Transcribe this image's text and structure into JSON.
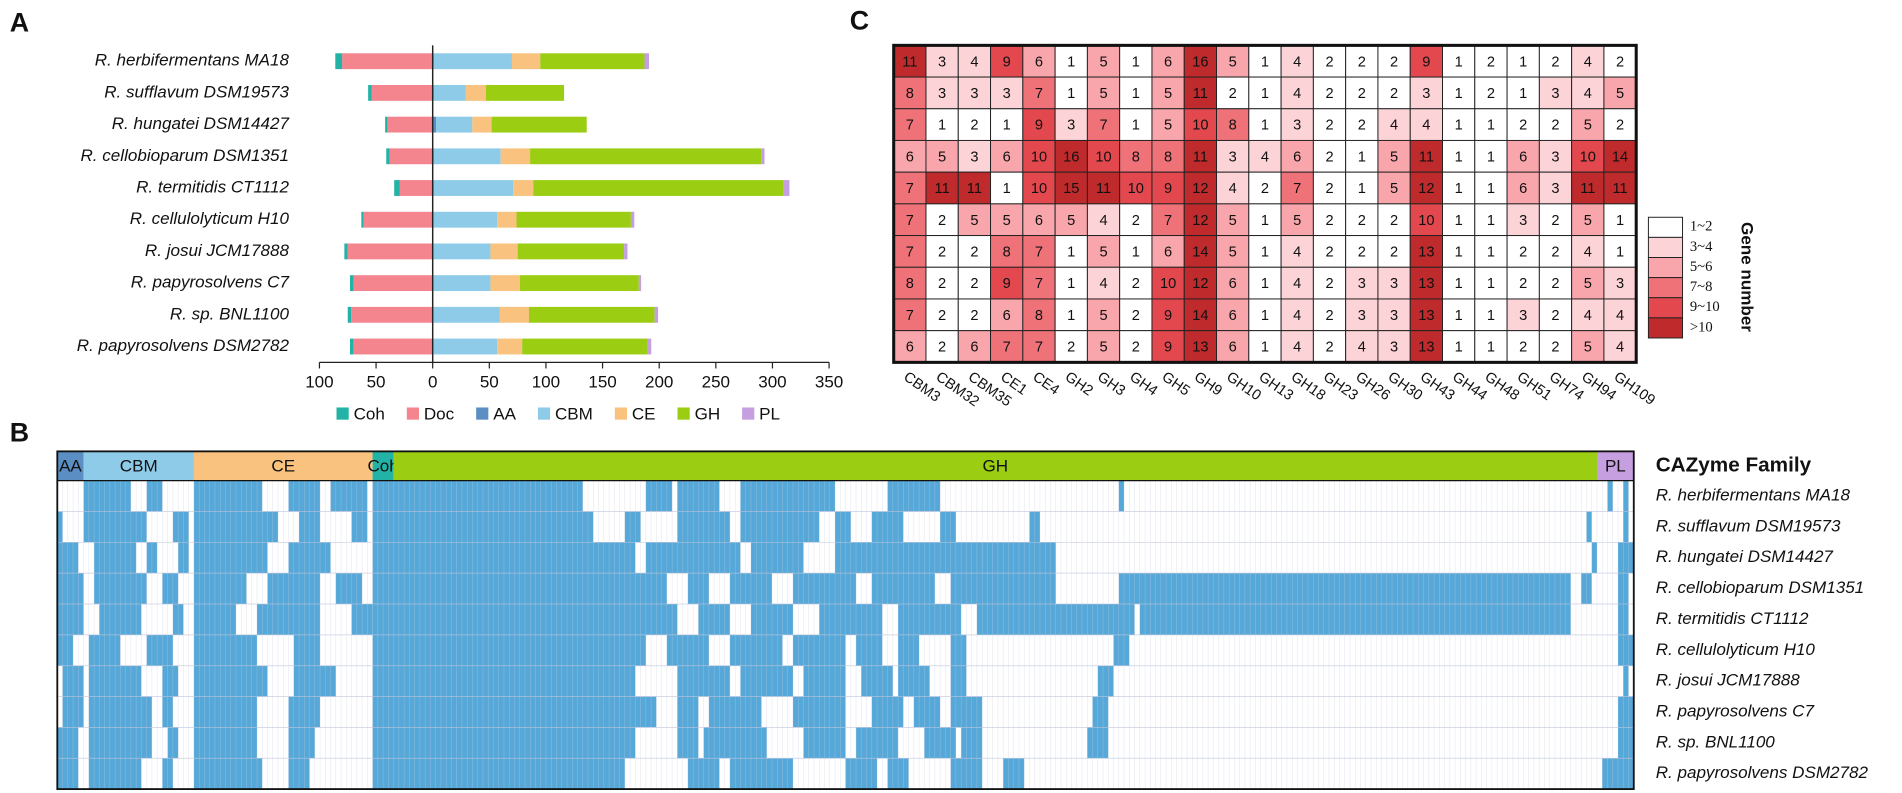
{
  "chart_data": [
    {
      "panel": "A",
      "type": "bar",
      "orientation": "horizontal",
      "stacked": true,
      "categories": [
        "R. herbifermentans MA18",
        "R. sufflavum DSM19573",
        "R. hungatei DSM14427",
        "R. cellobioparum DSM1351",
        "R. termitidis CT1112",
        "R. cellulolyticum H10",
        "R. josui JCM17888",
        "R. papyrosolvens C7",
        "R. sp. BNL1100",
        "R. papyrosolvens DSM2782"
      ],
      "series": [
        {
          "name": "Coh",
          "color": "#22b3a6",
          "values": [
            -6,
            -3,
            -2,
            -3,
            -5,
            -2,
            -3,
            -3,
            -3,
            -3
          ]
        },
        {
          "name": "Doc",
          "color": "#f4858e",
          "values": [
            -80,
            -54,
            -40,
            -38,
            -29,
            -61,
            -75,
            -70,
            -72,
            -70
          ]
        },
        {
          "name": "AA",
          "color": "#5b8fc4",
          "values": [
            1,
            1,
            3,
            1,
            1,
            0,
            0,
            0,
            0,
            0
          ]
        },
        {
          "name": "CBM",
          "color": "#8ecbe9",
          "values": [
            69,
            28,
            32,
            59,
            70,
            57,
            51,
            51,
            59,
            57
          ]
        },
        {
          "name": "CE",
          "color": "#f9c27e",
          "values": [
            25,
            18,
            17,
            26,
            18,
            17,
            24,
            26,
            26,
            22
          ]
        },
        {
          "name": "GH",
          "color": "#9bcd13",
          "values": [
            92,
            69,
            84,
            204,
            221,
            101,
            94,
            105,
            111,
            111
          ]
        },
        {
          "name": "PL",
          "color": "#c59fe0",
          "values": [
            4,
            0,
            0,
            3,
            5,
            3,
            3,
            2,
            3,
            3
          ]
        }
      ],
      "xlim": [
        -100,
        350
      ],
      "xticks": [
        {
          "value": -100,
          "label": "100"
        },
        {
          "value": -50,
          "label": "50"
        },
        0,
        50,
        100,
        150,
        200,
        250,
        300,
        350
      ],
      "legend": "bottom"
    },
    {
      "panel": "B",
      "type": "presence-matrix",
      "color": "#55a8d8",
      "legend_title": "CAZyme Family",
      "groups": [
        {
          "name": "AA",
          "count": 5,
          "color": "#5b8fc4"
        },
        {
          "name": "CBM",
          "count": 21,
          "color": "#8ecbe9"
        },
        {
          "name": "CE",
          "count": 34,
          "color": "#f9c27e"
        },
        {
          "name": "Coh",
          "count": 4,
          "color": "#22b3a6"
        },
        {
          "name": "GH",
          "count": 229,
          "color": "#9bcd13"
        },
        {
          "name": "PL",
          "count": 7,
          "color": "#c59fe0"
        }
      ],
      "rows": [
        [
          [
            5,
            9
          ],
          [
            17,
            3
          ],
          [
            26,
            13
          ],
          [
            44,
            6
          ],
          [
            52,
            7
          ],
          [
            60,
            40
          ],
          [
            112,
            5
          ],
          [
            118,
            8
          ],
          [
            130,
            18
          ],
          [
            158,
            10
          ],
          [
            202,
            1
          ],
          [
            295,
            1
          ],
          [
            298,
            1
          ]
        ],
        [
          [
            0,
            1
          ],
          [
            5,
            12
          ],
          [
            22,
            3
          ],
          [
            26,
            16
          ],
          [
            46,
            4
          ],
          [
            56,
            3
          ],
          [
            60,
            42
          ],
          [
            108,
            3
          ],
          [
            118,
            10
          ],
          [
            130,
            15
          ],
          [
            148,
            3
          ],
          [
            155,
            6
          ],
          [
            168,
            3
          ],
          [
            185,
            2
          ],
          [
            291,
            1
          ],
          [
            298,
            1
          ]
        ],
        [
          [
            0,
            4
          ],
          [
            7,
            8
          ],
          [
            17,
            2
          ],
          [
            23,
            2
          ],
          [
            26,
            14
          ],
          [
            44,
            8
          ],
          [
            60,
            50
          ],
          [
            112,
            18
          ],
          [
            132,
            10
          ],
          [
            148,
            28
          ],
          [
            176,
            14
          ],
          [
            292,
            1
          ],
          [
            297,
            3
          ]
        ],
        [
          [
            0,
            5
          ],
          [
            7,
            10
          ],
          [
            20,
            3
          ],
          [
            26,
            10
          ],
          [
            40,
            10
          ],
          [
            53,
            5
          ],
          [
            60,
            56
          ],
          [
            120,
            4
          ],
          [
            128,
            8
          ],
          [
            140,
            12
          ],
          [
            155,
            12
          ],
          [
            170,
            20
          ],
          [
            202,
            86
          ],
          [
            290,
            2
          ],
          [
            297,
            2
          ]
        ],
        [
          [
            0,
            5
          ],
          [
            8,
            8
          ],
          [
            22,
            2
          ],
          [
            26,
            8
          ],
          [
            38,
            12
          ],
          [
            56,
            4
          ],
          [
            60,
            58
          ],
          [
            122,
            6
          ],
          [
            132,
            8
          ],
          [
            145,
            12
          ],
          [
            160,
            12
          ],
          [
            175,
            30
          ],
          [
            206,
            82
          ],
          [
            297,
            2
          ]
        ],
        [
          [
            0,
            3
          ],
          [
            6,
            6
          ],
          [
            17,
            5
          ],
          [
            26,
            12
          ],
          [
            45,
            5
          ],
          [
            60,
            52
          ],
          [
            116,
            8
          ],
          [
            128,
            10
          ],
          [
            140,
            10
          ],
          [
            152,
            5
          ],
          [
            160,
            4
          ],
          [
            170,
            3
          ],
          [
            201,
            3
          ],
          [
            297,
            3
          ]
        ],
        [
          [
            1,
            4
          ],
          [
            6,
            10
          ],
          [
            20,
            3
          ],
          [
            26,
            14
          ],
          [
            45,
            8
          ],
          [
            60,
            50
          ],
          [
            118,
            10
          ],
          [
            130,
            10
          ],
          [
            142,
            8
          ],
          [
            153,
            6
          ],
          [
            160,
            6
          ],
          [
            170,
            3
          ],
          [
            198,
            3
          ],
          [
            298,
            1
          ]
        ],
        [
          [
            1,
            4
          ],
          [
            6,
            12
          ],
          [
            20,
            2
          ],
          [
            26,
            12
          ],
          [
            44,
            6
          ],
          [
            60,
            54
          ],
          [
            118,
            4
          ],
          [
            124,
            10
          ],
          [
            140,
            10
          ],
          [
            155,
            6
          ],
          [
            163,
            5
          ],
          [
            170,
            6
          ],
          [
            197,
            3
          ],
          [
            297,
            3
          ]
        ],
        [
          [
            0,
            4
          ],
          [
            6,
            12
          ],
          [
            21,
            2
          ],
          [
            26,
            12
          ],
          [
            44,
            5
          ],
          [
            60,
            50
          ],
          [
            118,
            4
          ],
          [
            123,
            12
          ],
          [
            142,
            8
          ],
          [
            152,
            8
          ],
          [
            165,
            6
          ],
          [
            172,
            4
          ],
          [
            196,
            4
          ],
          [
            297,
            3
          ]
        ],
        [
          [
            0,
            4
          ],
          [
            6,
            10
          ],
          [
            20,
            2
          ],
          [
            26,
            13
          ],
          [
            44,
            4
          ],
          [
            60,
            48
          ],
          [
            120,
            6
          ],
          [
            128,
            12
          ],
          [
            150,
            6
          ],
          [
            158,
            4
          ],
          [
            170,
            6
          ],
          [
            180,
            4
          ],
          [
            294,
            5
          ],
          [
            299,
            1
          ]
        ]
      ]
    },
    {
      "panel": "C",
      "type": "heatmap",
      "legend_title": "Gene number",
      "categories": [
        "CBM3",
        "CBM32",
        "CBM35",
        "CE1",
        "CE4",
        "GH2",
        "GH3",
        "GH4",
        "GH5",
        "GH9",
        "GH10",
        "GH13",
        "GH18",
        "GH23",
        "GH26",
        "GH30",
        "GH43",
        "GH44",
        "GH48",
        "GH51",
        "GH74",
        "GH94",
        "GH109"
      ],
      "values": [
        [
          11,
          3,
          4,
          9,
          6,
          1,
          5,
          1,
          6,
          16,
          5,
          1,
          4,
          2,
          2,
          2,
          9,
          1,
          2,
          1,
          2,
          4,
          2
        ],
        [
          8,
          3,
          3,
          3,
          7,
          1,
          5,
          1,
          5,
          11,
          2,
          1,
          4,
          2,
          2,
          2,
          3,
          1,
          2,
          1,
          3,
          4,
          5
        ],
        [
          7,
          1,
          2,
          1,
          9,
          3,
          7,
          1,
          5,
          10,
          8,
          1,
          3,
          2,
          2,
          4,
          4,
          1,
          1,
          2,
          2,
          5,
          2
        ],
        [
          6,
          5,
          3,
          6,
          10,
          16,
          10,
          8,
          8,
          11,
          3,
          4,
          6,
          2,
          1,
          5,
          11,
          1,
          1,
          6,
          3,
          10,
          14
        ],
        [
          7,
          11,
          11,
          1,
          10,
          15,
          11,
          10,
          9,
          12,
          4,
          2,
          7,
          2,
          1,
          5,
          12,
          1,
          1,
          6,
          3,
          11,
          11
        ],
        [
          7,
          2,
          5,
          5,
          6,
          5,
          4,
          2,
          7,
          12,
          5,
          1,
          5,
          2,
          2,
          2,
          10,
          1,
          1,
          3,
          2,
          5,
          1
        ],
        [
          7,
          2,
          2,
          8,
          7,
          1,
          5,
          1,
          6,
          14,
          5,
          1,
          4,
          2,
          2,
          2,
          13,
          1,
          1,
          2,
          2,
          4,
          1
        ],
        [
          8,
          2,
          2,
          9,
          7,
          1,
          4,
          2,
          10,
          12,
          6,
          1,
          4,
          2,
          3,
          3,
          13,
          1,
          1,
          2,
          2,
          5,
          3
        ],
        [
          7,
          2,
          2,
          6,
          8,
          1,
          5,
          2,
          9,
          14,
          6,
          1,
          4,
          2,
          3,
          3,
          13,
          1,
          1,
          3,
          2,
          4,
          4
        ],
        [
          6,
          2,
          6,
          7,
          7,
          2,
          5,
          2,
          9,
          13,
          6,
          1,
          4,
          2,
          4,
          3,
          13,
          1,
          1,
          2,
          2,
          5,
          4
        ]
      ],
      "bins": [
        {
          "min": 1,
          "label": "1~2",
          "color": "#ffffff"
        },
        {
          "min": 3,
          "label": "3~4",
          "color": "#fcd3d6"
        },
        {
          "min": 5,
          "label": "5~6",
          "color": "#f8a6ac"
        },
        {
          "min": 7,
          "label": "7~8",
          "color": "#f07279"
        },
        {
          "min": 9,
          "label": "9~10",
          "color": "#e2484e"
        },
        {
          "min": 11,
          "label": ">10",
          "color": "#bf2a2c"
        }
      ]
    }
  ]
}
